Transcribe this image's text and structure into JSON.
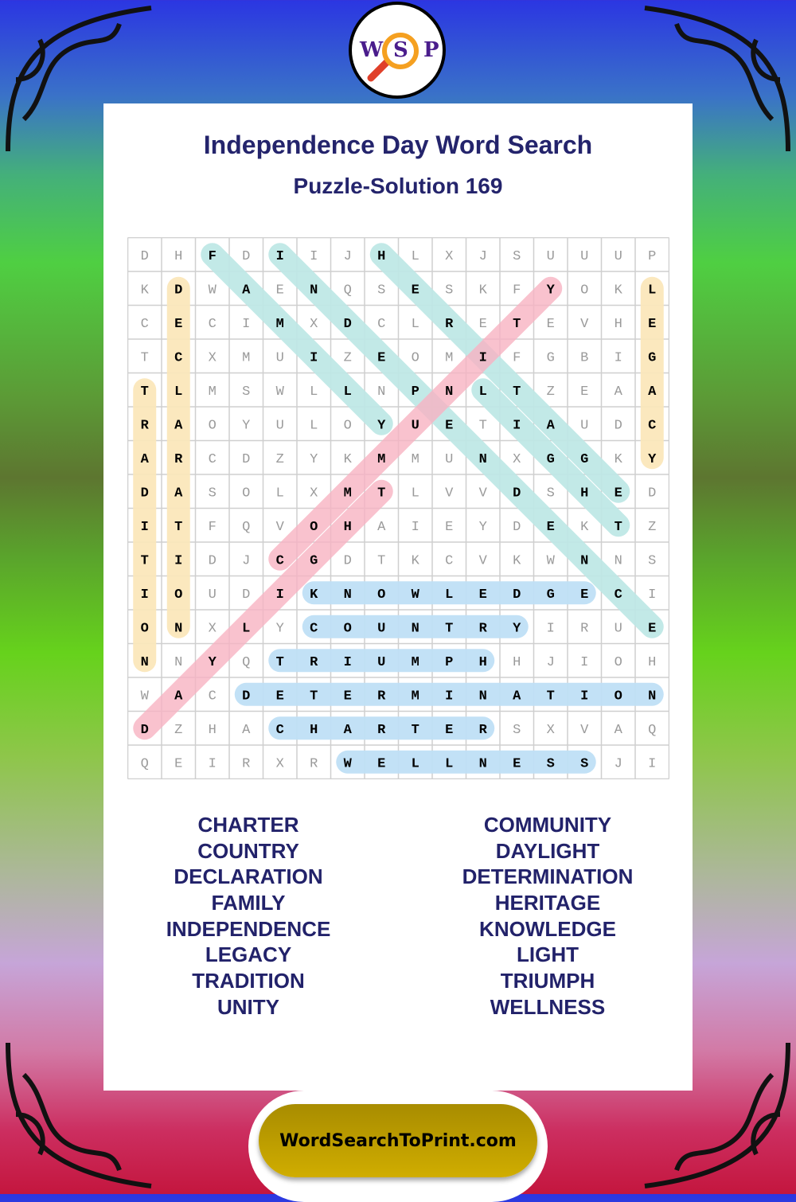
{
  "logo": {
    "letters": [
      "W",
      "S",
      "P"
    ]
  },
  "header": {
    "title": "Independence Day Word Search",
    "subtitle": "Puzzle-Solution 169"
  },
  "grid": [
    "DHFDIIJHLXJSUUUP",
    "KDWAENQSESKFYOKL",
    "CECIMXDCLRETEVHE",
    "TCXMUIZEOMIFGBIG",
    "TLMSWLLNPNLTZEAA",
    "RAOYULOYUETIAUDC",
    "ARCDZYKMMUNXGGKY",
    "DASOLXMTLVVDSHED",
    "ITFQVOHAIEYDEKTZ",
    "TIDJCGDTKCVKWNNS",
    "IOUDIKNOWLEDGECI",
    "ONXLYCOUNTRYIRUE",
    "NNYQTRIUMPHHJIOH",
    "WACDETERMINATION",
    "DZHACHARTERSXVAQ",
    "QEIRXRWELLNESSJI"
  ],
  "highlight_colors": {
    "teal": "#bfe8e6",
    "yellow": "#fbe7bb",
    "pink": "#f8b3c3",
    "blue": "#bfe0f6"
  },
  "solutions": [
    {
      "word": "FAMILY",
      "start": [
        0,
        2
      ],
      "end": [
        5,
        7
      ],
      "color": "teal"
    },
    {
      "word": "INDEPENDENCE",
      "start": [
        0,
        4
      ],
      "end": [
        11,
        15
      ],
      "color": "teal"
    },
    {
      "word": "HERITAGE",
      "start": [
        0,
        7
      ],
      "end": [
        7,
        14
      ],
      "color": "teal"
    },
    {
      "word": "LIGHT",
      "start": [
        4,
        10
      ],
      "end": [
        8,
        14
      ],
      "color": "teal"
    },
    {
      "word": "DECLARATION",
      "start": [
        1,
        1
      ],
      "end": [
        11,
        1
      ],
      "color": "yellow"
    },
    {
      "word": "TRADITION",
      "start": [
        4,
        0
      ],
      "end": [
        12,
        0
      ],
      "color": "yellow"
    },
    {
      "word": "LEGACY",
      "start": [
        1,
        15
      ],
      "end": [
        6,
        15
      ],
      "color": "yellow"
    },
    {
      "word": "DAYLIGHT",
      "start": [
        14,
        0
      ],
      "end": [
        7,
        7
      ],
      "color": "pink"
    },
    {
      "word": "COMMUNITY",
      "start": [
        9,
        4
      ],
      "end": [
        1,
        12
      ],
      "color": "pink"
    },
    {
      "word": "KNOWLEDGE",
      "start": [
        10,
        5
      ],
      "end": [
        10,
        13
      ],
      "color": "blue"
    },
    {
      "word": "COUNTRY",
      "start": [
        11,
        5
      ],
      "end": [
        11,
        11
      ],
      "color": "blue"
    },
    {
      "word": "TRIUMPH",
      "start": [
        12,
        4
      ],
      "end": [
        12,
        10
      ],
      "color": "blue"
    },
    {
      "word": "DETERMINATION",
      "start": [
        13,
        3
      ],
      "end": [
        13,
        15
      ],
      "color": "blue"
    },
    {
      "word": "CHARTER",
      "start": [
        14,
        4
      ],
      "end": [
        14,
        10
      ],
      "color": "blue"
    },
    {
      "word": "WELLNESS",
      "start": [
        15,
        6
      ],
      "end": [
        15,
        13
      ],
      "color": "blue"
    }
  ],
  "word_list": {
    "left": [
      "CHARTER",
      "COUNTRY",
      "DECLARATION",
      "FAMILY",
      "INDEPENDENCE",
      "LEGACY",
      "TRADITION",
      "UNITY"
    ],
    "right": [
      "COMMUNITY",
      "DAYLIGHT",
      "DETERMINATION",
      "HERITAGE",
      "KNOWLEDGE",
      "LIGHT",
      "TRIUMPH",
      "WELLNESS"
    ]
  },
  "footer": {
    "site": "WordSearchToPrint.com"
  }
}
